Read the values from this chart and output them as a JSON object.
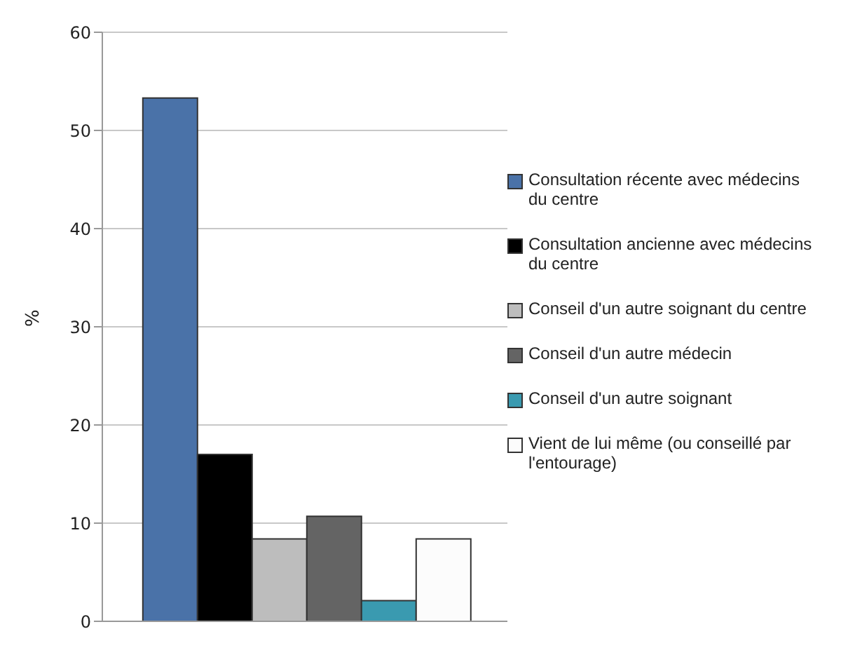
{
  "chart_data": {
    "type": "bar",
    "ylabel": "%",
    "categories": [
      null
    ],
    "ylim": [
      0,
      60
    ],
    "yticks": [
      0,
      10,
      20,
      30,
      40,
      50,
      60
    ],
    "grid": "y",
    "legend": "right",
    "series": [
      {
        "name": "Consultation récente avec médecins du centre",
        "color": "#4a72a8",
        "values": [
          53.3
        ]
      },
      {
        "name": "Consultation ancienne avec médecins du centre",
        "color": "#000000",
        "values": [
          17
        ]
      },
      {
        "name": "Conseil d'un autre soignant du centre",
        "color": "#bdbdbd",
        "values": [
          8.4
        ]
      },
      {
        "name": "Conseil d'un autre médecin",
        "color": "#646464",
        "values": [
          10.7
        ]
      },
      {
        "name": "Conseil d'un autre soignant",
        "color": "#3a9ab0",
        "values": [
          2.1
        ]
      },
      {
        "name": "Vient de lui même (ou conseillé par l'entourage)",
        "color": "#fcfcfc",
        "values": [
          8.4
        ]
      }
    ]
  }
}
